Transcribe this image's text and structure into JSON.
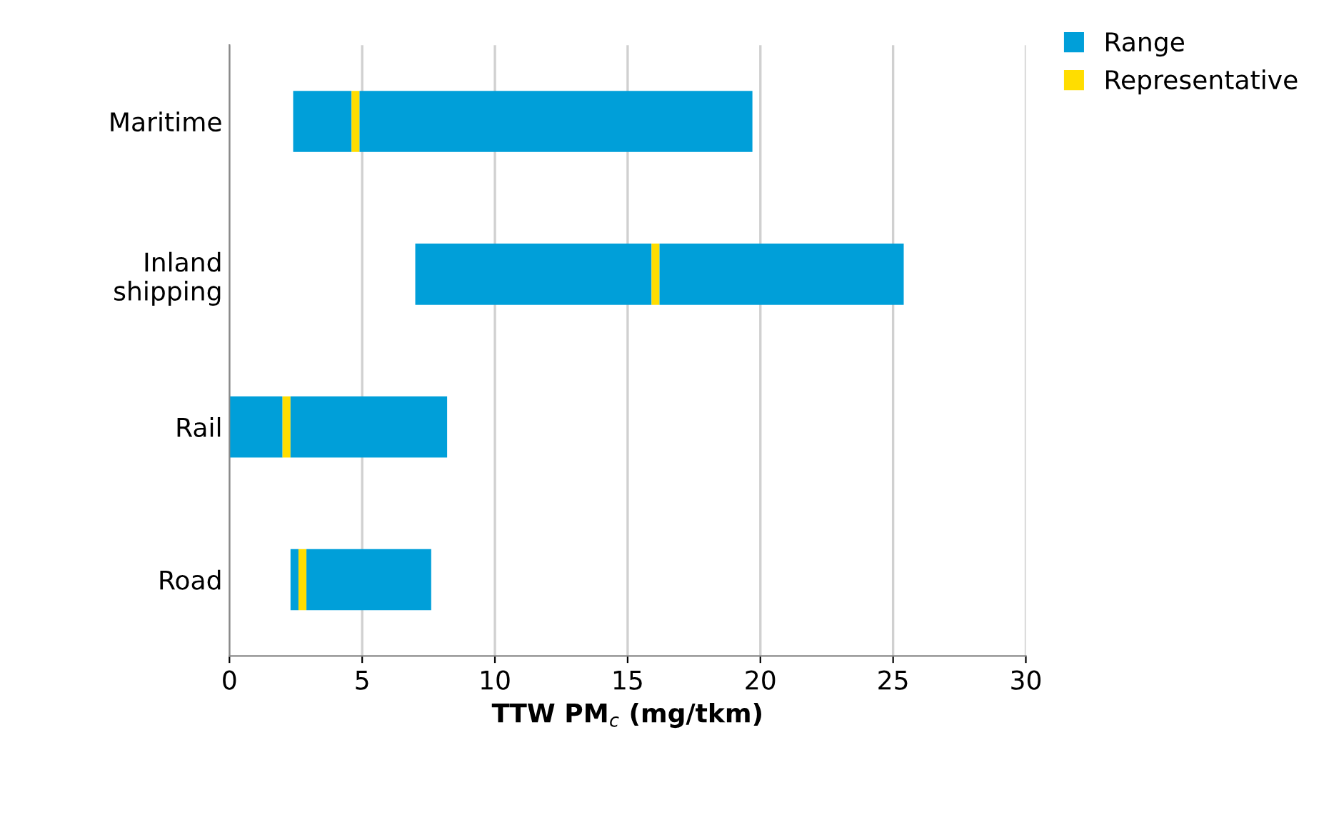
{
  "chart_data": {
    "type": "bar",
    "orientation": "horizontal",
    "stacked": true,
    "categories": [
      "Maritime",
      "Inland\nshipping",
      "Rail",
      "Road"
    ],
    "series": [
      {
        "name": "Range",
        "type": "bar",
        "color": "#009fd9",
        "base": [
          2.4,
          7.0,
          0,
          2.3
        ],
        "values": [
          2.2,
          8.9,
          2.0,
          0.3
        ]
      },
      {
        "name": "Representative",
        "color": "#ffdd00",
        "values": [
          0.3,
          0.3,
          0.3,
          0.3
        ]
      },
      {
        "color": "#009fd9",
        "values": [
          14.8,
          9.2,
          5.9,
          4.7
        ]
      }
    ],
    "xlabel": "TTW PM$_{c}$ (mg/tkm)",
    "xlim": [
      0,
      30
    ],
    "xticks": [
      0,
      5,
      10,
      15,
      20,
      25,
      30
    ],
    "grid": "x",
    "legend": "top right"
  }
}
